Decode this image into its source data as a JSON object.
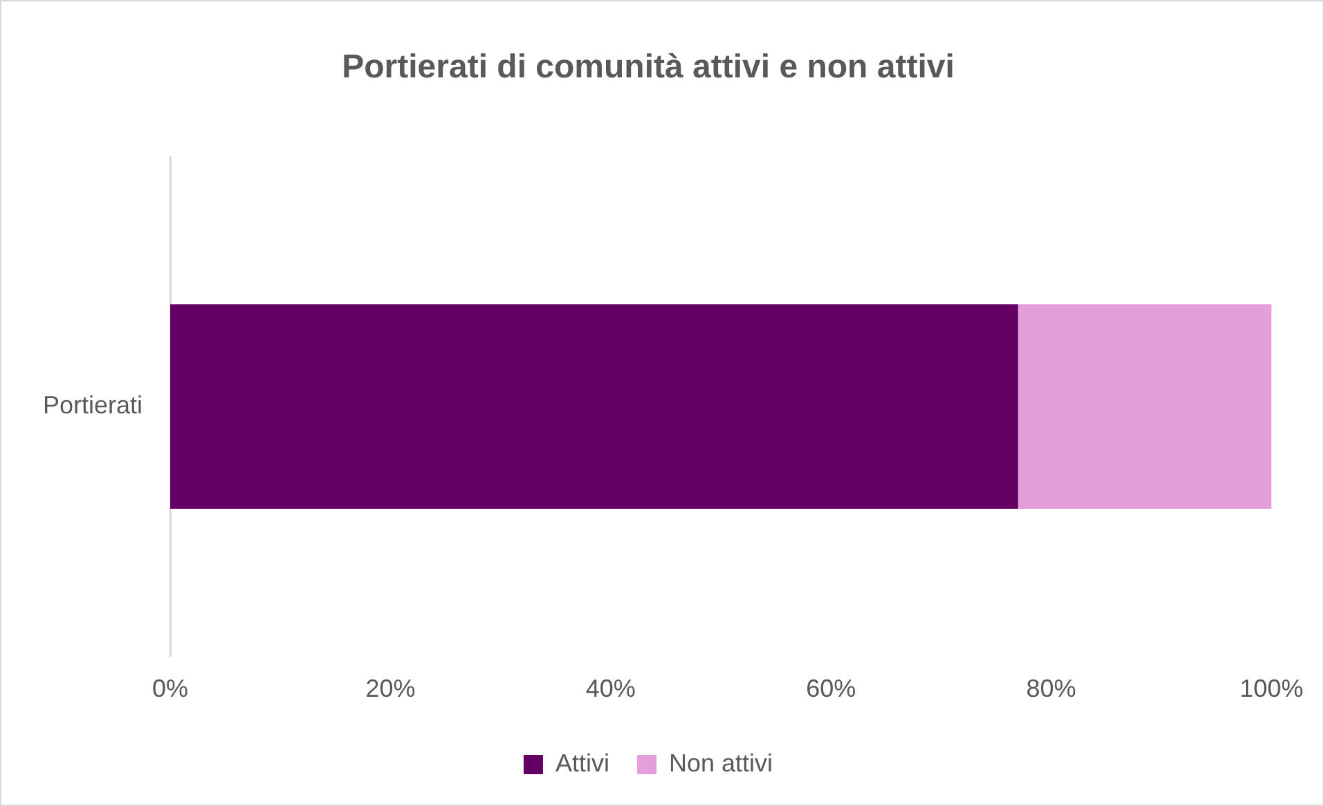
{
  "chart_data": {
    "type": "bar",
    "title": "Portierati di comunità attivi e non attivi",
    "orientation": "horizontal",
    "stacked": true,
    "categories": [
      "Portierati"
    ],
    "series": [
      {
        "name": "Attivi",
        "color": "#640064",
        "values": [
          77
        ]
      },
      {
        "name": "Non attivi",
        "color": "#e49edc",
        "values": [
          23
        ]
      }
    ],
    "xlim": [
      0,
      100
    ],
    "xticks": [
      {
        "value": 0,
        "label": "0%"
      },
      {
        "value": 20,
        "label": "20%"
      },
      {
        "value": 40,
        "label": "40%"
      },
      {
        "value": 60,
        "label": "60%"
      },
      {
        "value": 80,
        "label": "80%"
      },
      {
        "value": 100,
        "label": "100%"
      }
    ],
    "grid": false,
    "legend": "bottom"
  }
}
